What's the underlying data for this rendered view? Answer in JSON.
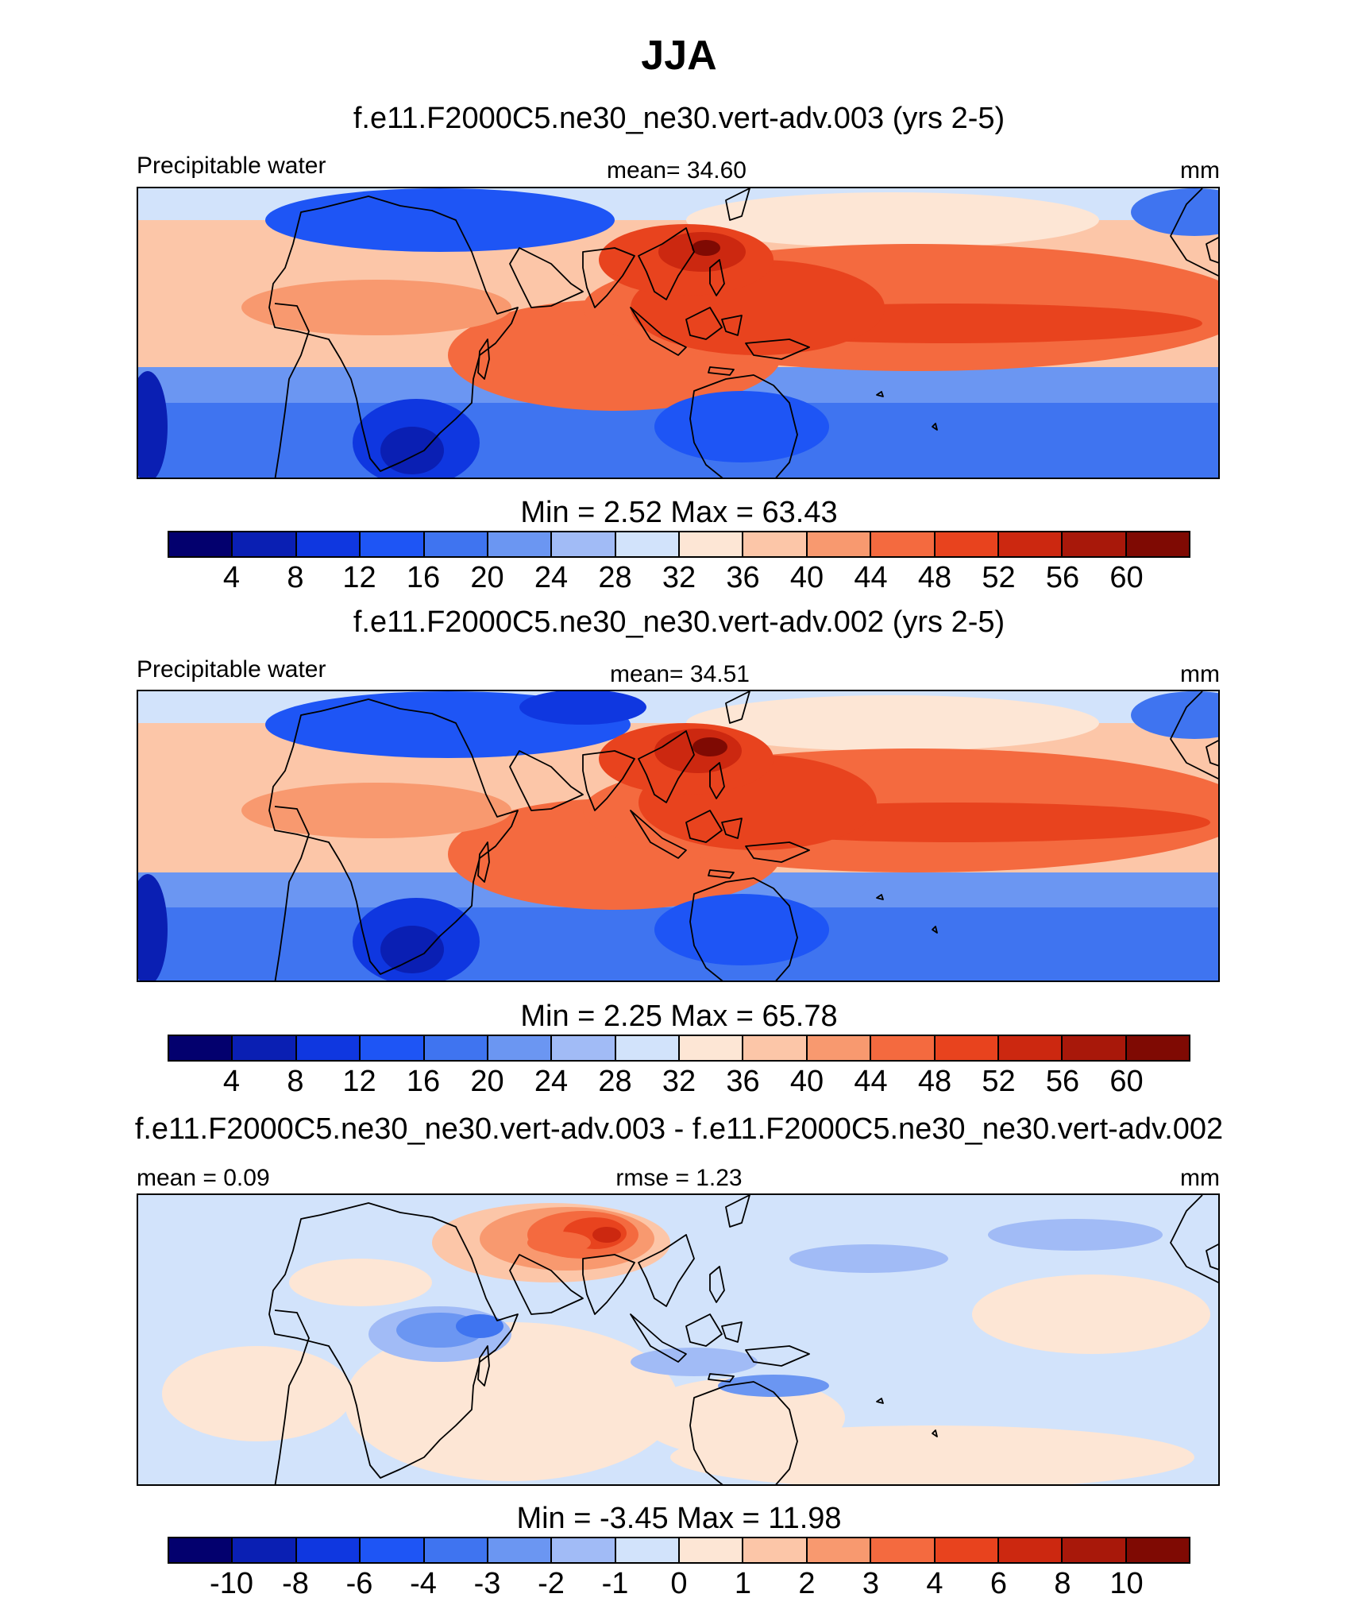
{
  "title": "JJA",
  "colors": [
    "#03006e",
    "#0a1fb3",
    "#0f37e0",
    "#1e55f5",
    "#3f74f0",
    "#6b96f2",
    "#a1bbf6",
    "#d2e3fb",
    "#fde6d5",
    "#fcc6a8",
    "#f8996f",
    "#f46a3f",
    "#e8431e",
    "#cc2810",
    "#a8180a",
    "#7f0a03"
  ],
  "panels": [
    {
      "case_title": "f.e11.F2000C5.ne30_ne30.vert-adv.003 (yrs 2-5)",
      "left_label": "Precipitable water",
      "center_label": "mean=  34.60",
      "units": "mm",
      "minmax": "Min =   2.52 Max =  63.43",
      "ticks": [
        "4",
        "8",
        "12",
        "16",
        "20",
        "24",
        "28",
        "32",
        "36",
        "40",
        "44",
        "48",
        "52",
        "56",
        "60"
      ]
    },
    {
      "case_title": "f.e11.F2000C5.ne30_ne30.vert-adv.002 (yrs 2-5)",
      "left_label": "Precipitable water",
      "center_label": "mean=  34.51",
      "units": "mm",
      "minmax": "Min =   2.25 Max =  65.78",
      "ticks": [
        "4",
        "8",
        "12",
        "16",
        "20",
        "24",
        "28",
        "32",
        "36",
        "40",
        "44",
        "48",
        "52",
        "56",
        "60"
      ]
    },
    {
      "case_title": "f.e11.F2000C5.ne30_ne30.vert-adv.003 - f.e11.F2000C5.ne30_ne30.vert-adv.002",
      "left_label": "mean =   0.09",
      "center_label": "rmse =    1.23",
      "units": "mm",
      "minmax": "Min =  -3.45 Max =  11.98",
      "ticks": [
        "-10",
        "-8",
        "-6",
        "-4",
        "-3",
        "-2",
        "-1",
        "0",
        "1",
        "2",
        "3",
        "4",
        "6",
        "8",
        "10"
      ]
    }
  ]
}
